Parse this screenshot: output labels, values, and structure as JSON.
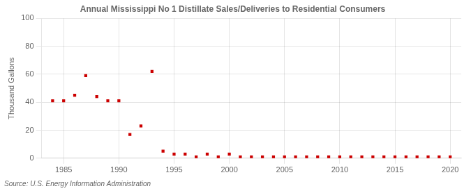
{
  "chart_data": {
    "type": "scatter",
    "title": "Annual Mississippi No 1 Distillate Sales/Deliveries to Residential Consumers",
    "y_label": "Thousand Gallons",
    "annotation": "Source: U.S. Energy Information Administration",
    "x": [
      1984,
      1985,
      1986,
      1987,
      1988,
      1989,
      1990,
      1991,
      1992,
      1993,
      1994,
      1995,
      1996,
      1997,
      1998,
      1999,
      2000,
      2001,
      2002,
      2003,
      2004,
      2005,
      2006,
      2007,
      2008,
      2009,
      2010,
      2011,
      2012,
      2013,
      2014,
      2015,
      2016,
      2017,
      2018,
      2019,
      2020
    ],
    "values": [
      41,
      41,
      45,
      59,
      44,
      41,
      41,
      17,
      23,
      62,
      5,
      3,
      3,
      1,
      3,
      1,
      3,
      1,
      1,
      1,
      1,
      1,
      1,
      1,
      1,
      1,
      1,
      1,
      1,
      1,
      1,
      1,
      1,
      1,
      1,
      1,
      1
    ],
    "color": "#cc0000",
    "marker": "square",
    "xlim": [
      1983,
      2021
    ],
    "ylim": [
      0,
      100
    ],
    "xticks": [
      1985,
      1990,
      1995,
      2000,
      2005,
      2010,
      2015,
      2020
    ],
    "yticks": [
      0,
      20,
      40,
      60,
      80,
      100
    ],
    "grid": true
  }
}
